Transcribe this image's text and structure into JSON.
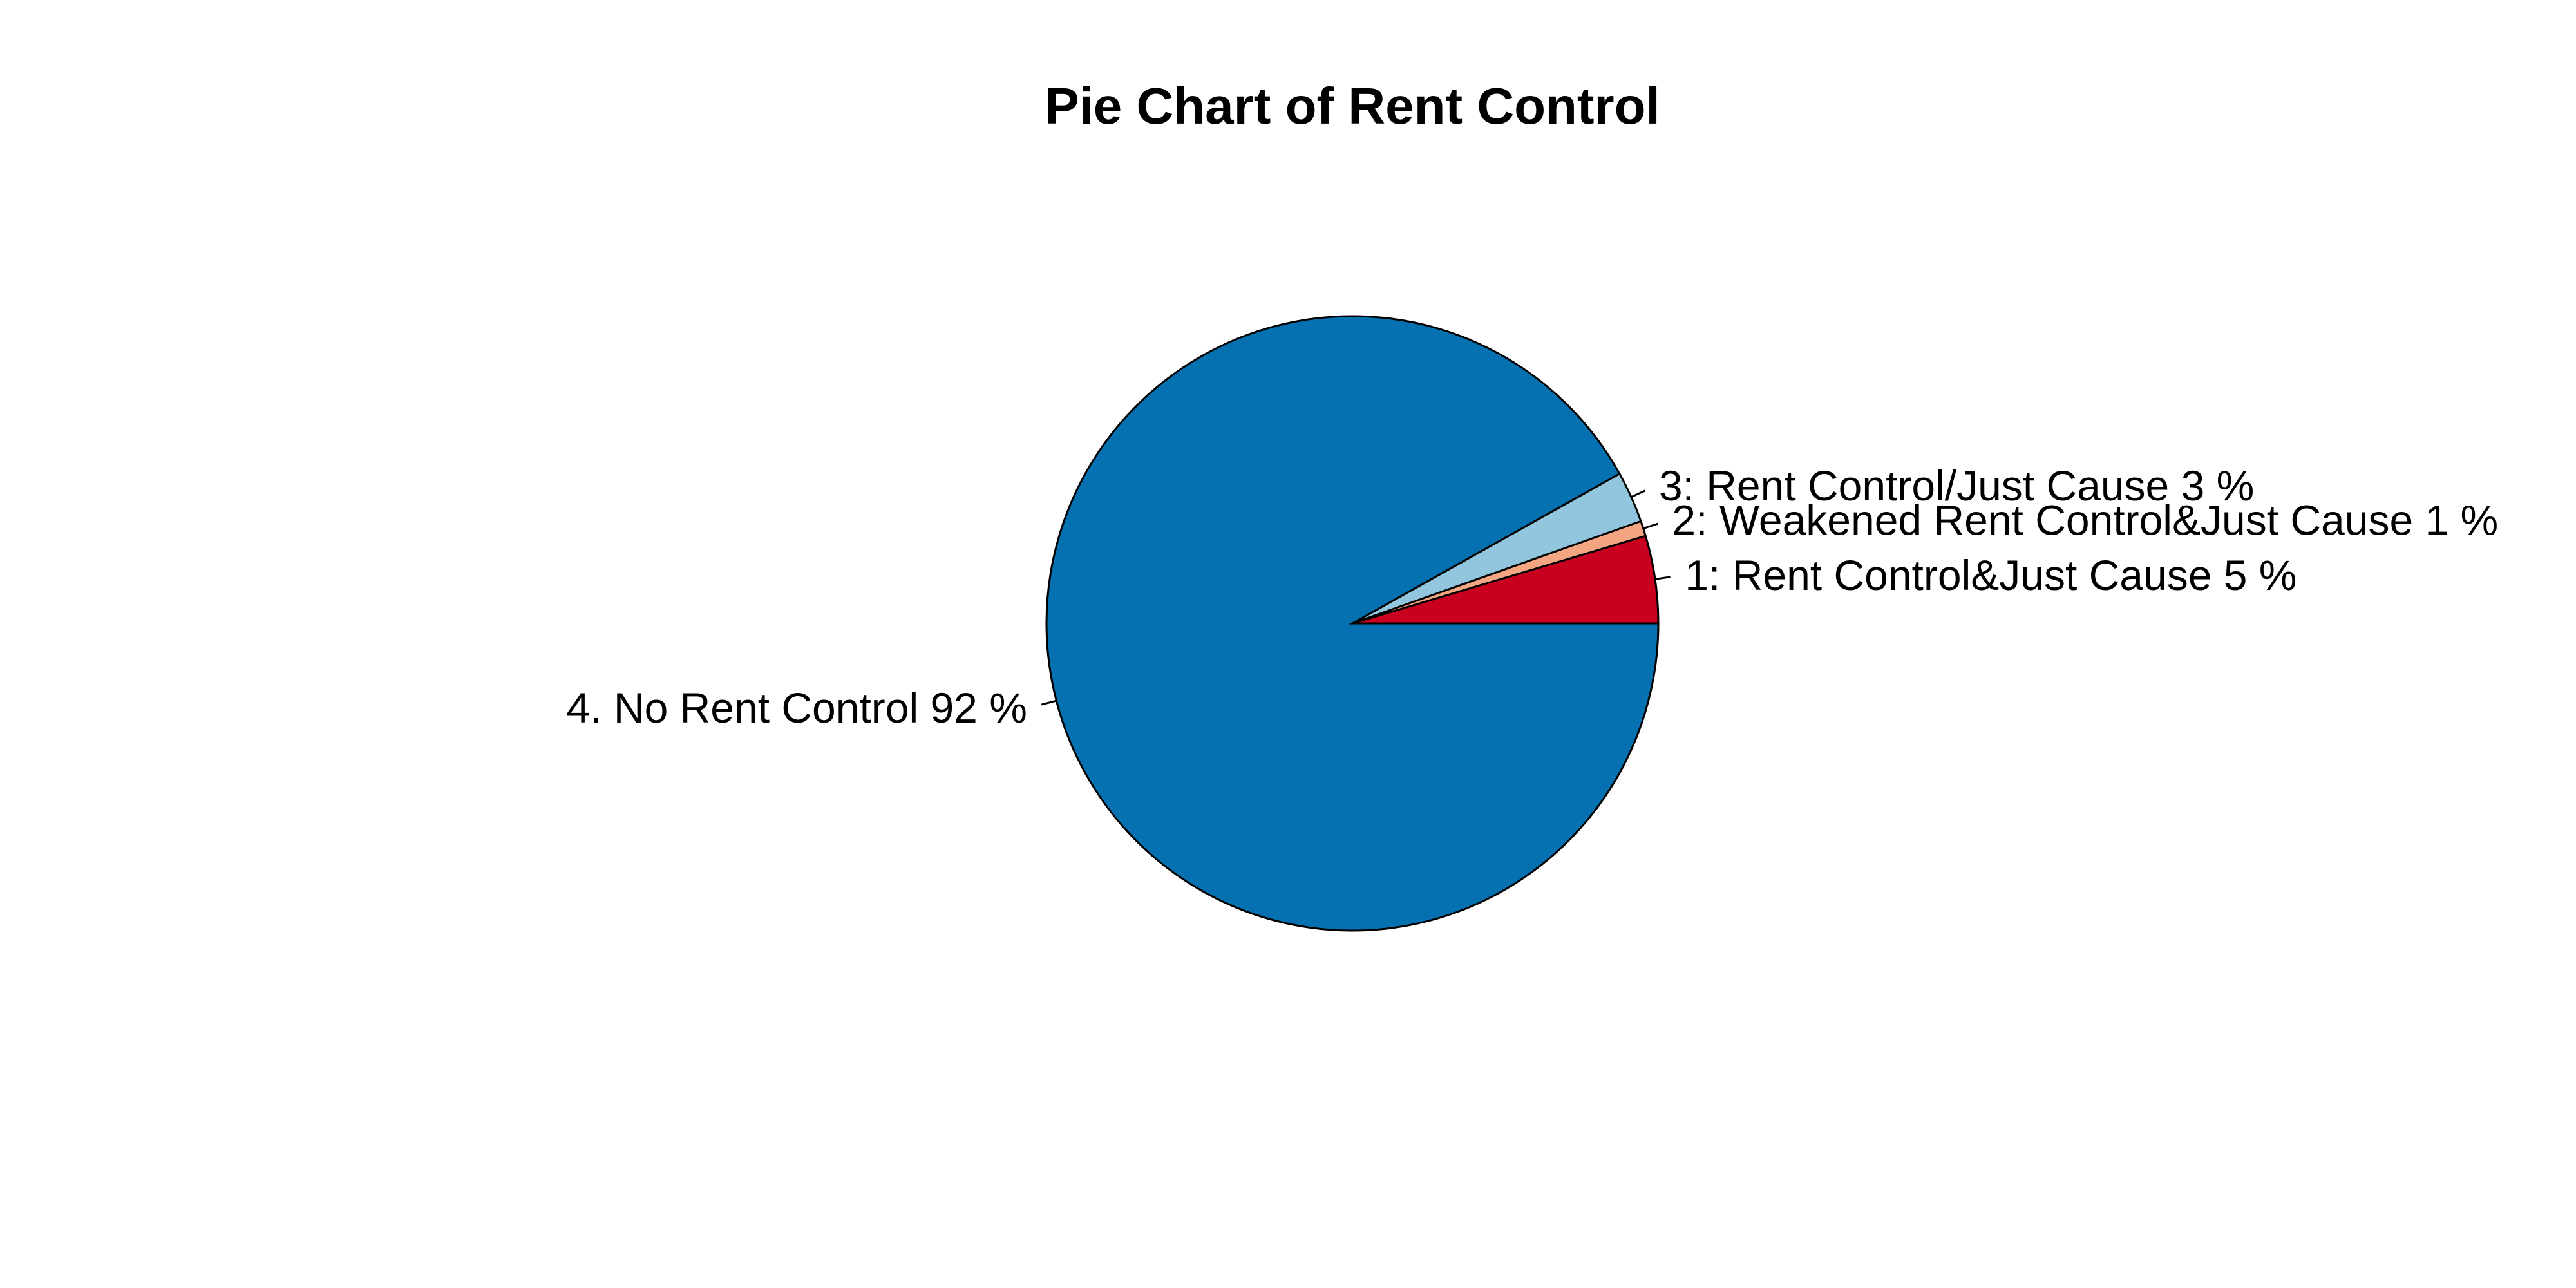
{
  "chart_data": {
    "type": "pie",
    "title": "Pie Chart of Rent Control",
    "start_angle_deg": 0,
    "direction": "counterclockwise",
    "slices": [
      {
        "label": "1: Rent Control&Just Cause 5 %",
        "value": 4.6,
        "color": "#CA0020"
      },
      {
        "label": "2: Weakened Rent Control&Just Cause 1 %",
        "value": 0.8,
        "color": "#F4A582"
      },
      {
        "label": "3: Rent Control/Just Cause 3 %",
        "value": 2.7,
        "color": "#92C5DE"
      },
      {
        "label": "4. No Rent Control 92 %",
        "value": 91.9,
        "color": "#0571B0"
      }
    ]
  }
}
